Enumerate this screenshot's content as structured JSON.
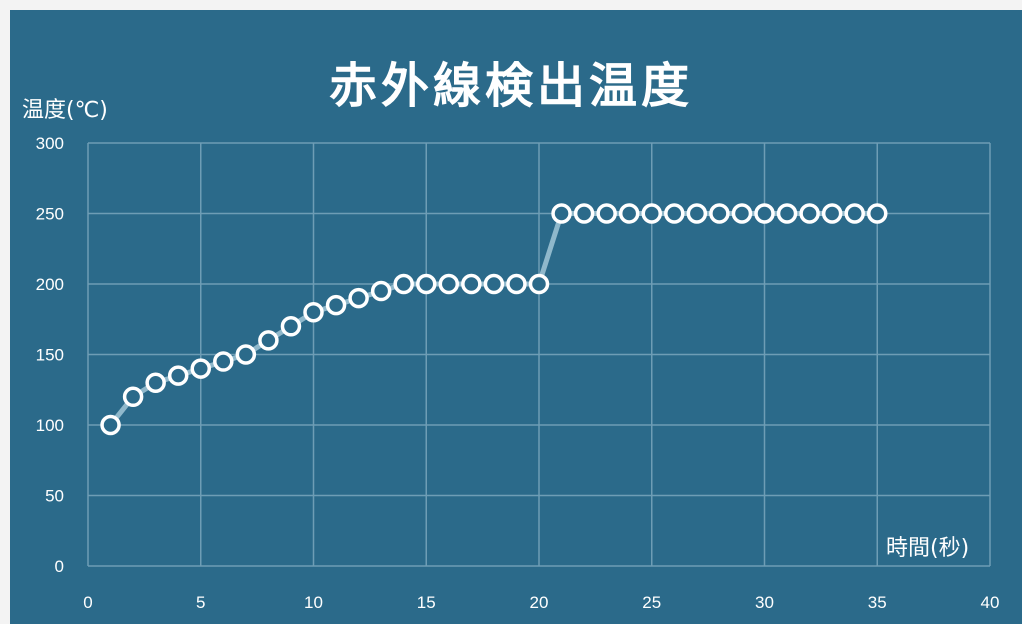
{
  "chart_data": {
    "type": "line",
    "title": "赤外線検出温度",
    "ylabel": "温度(℃)",
    "xlabel": "時間(秒)",
    "xlim": [
      0,
      40
    ],
    "ylim": [
      0,
      300
    ],
    "xticks": [
      0,
      5,
      10,
      15,
      20,
      25,
      30,
      35,
      40
    ],
    "yticks": [
      0,
      50,
      100,
      150,
      200,
      250,
      300
    ],
    "grid": true,
    "series": [
      {
        "x": [
          1,
          2,
          3,
          4,
          5,
          6,
          7,
          8,
          9,
          10,
          11,
          12,
          13,
          14,
          15,
          16,
          17,
          18,
          19,
          20,
          21,
          22,
          23,
          24,
          25,
          26,
          27,
          28,
          29,
          30,
          31,
          32,
          33,
          34,
          35
        ],
        "y": [
          100,
          120,
          130,
          135,
          140,
          145,
          150,
          160,
          170,
          180,
          185,
          190,
          195,
          200,
          200,
          200,
          200,
          200,
          200,
          200,
          250,
          250,
          250,
          250,
          250,
          250,
          250,
          250,
          250,
          250,
          250,
          250,
          250,
          250,
          250
        ]
      }
    ],
    "colors": {
      "background": "#2b6a8a",
      "grid": "#6e9db5",
      "line": "#8fb8cb",
      "marker_fill": "#2b6a8a",
      "marker_stroke": "#ffffff",
      "text": "#ffffff"
    }
  }
}
